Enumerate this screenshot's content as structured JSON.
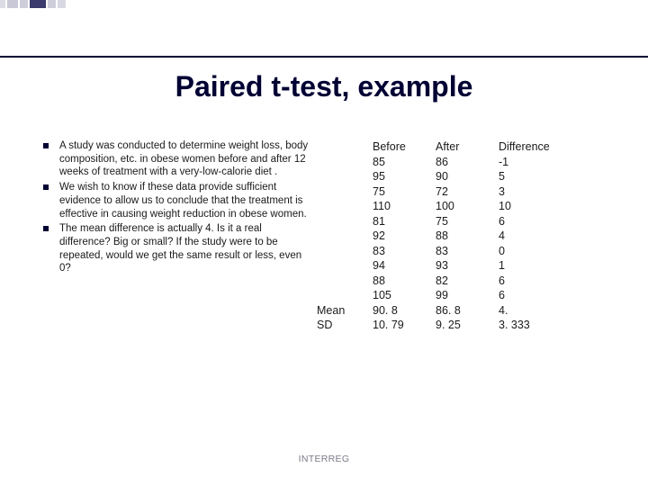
{
  "title": "Paired t-test, example",
  "bullets": [
    "A study was conducted to determine weight loss, body composition, etc. in obese women before and after 12 weeks of treatment with a very-low-calorie diet .",
    "We wish to know if these data provide sufficient evidence to allow us to conclude that the treatment is effective in causing weight reduction in obese women.",
    "The mean difference is actually 4. Is it a real difference? Big or small? If the study were to be repeated, would we get the same result or less, even 0?"
  ],
  "table": {
    "headers": {
      "before": "Before",
      "after": "After",
      "diff": "Difference"
    },
    "labels": {
      "mean": "Mean",
      "sd": "SD"
    },
    "rows": [
      {
        "before": "85",
        "after": "86",
        "diff": "-1"
      },
      {
        "before": "95",
        "after": "90",
        "diff": "5"
      },
      {
        "before": "75",
        "after": "72",
        "diff": "3"
      },
      {
        "before": "110",
        "after": "100",
        "diff": "10"
      },
      {
        "before": "81",
        "after": "75",
        "diff": "6"
      },
      {
        "before": "92",
        "after": "88",
        "diff": "4"
      },
      {
        "before": "83",
        "after": "83",
        "diff": "0"
      },
      {
        "before": "94",
        "after": "93",
        "diff": "1"
      },
      {
        "before": "88",
        "after": "82",
        "diff": "6"
      },
      {
        "before": "105",
        "after": "99",
        "diff": "6"
      }
    ],
    "mean": {
      "before": "90. 8",
      "after": "86. 8",
      "diff": "4."
    },
    "sd": {
      "before": "10. 79",
      "after": "9. 25",
      "diff": "3. 333"
    }
  },
  "footer": "INTERREG"
}
